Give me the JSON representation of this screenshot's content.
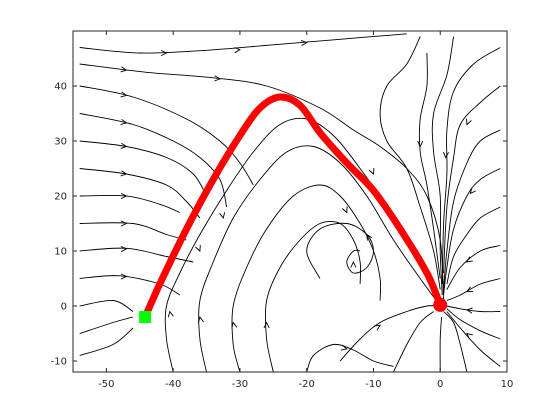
{
  "chart_data": {
    "type": "streamplot",
    "xlim": [
      -55,
      10
    ],
    "ylim": [
      -12,
      50
    ],
    "xticks": [
      -50,
      -40,
      -30,
      -20,
      -10,
      0,
      10
    ],
    "yticks": [
      -10,
      0,
      10,
      20,
      30,
      40
    ],
    "xtick_labels": [
      "-50",
      "-40",
      "-30",
      "-20",
      "-10",
      "0",
      "10"
    ],
    "ytick_labels": [
      "-10",
      "0",
      "10",
      "20",
      "30",
      "40"
    ],
    "grid": false,
    "colors": {
      "streamlines": "#000000",
      "trajectory": "#ff0000",
      "start_marker": "#00ff00",
      "end_marker": "#ff0000",
      "axes": "#262626"
    },
    "streamlines": [
      [
        [
          -54,
          47
        ],
        [
          -45,
          46
        ],
        [
          -35,
          46.5
        ],
        [
          -25,
          47.5
        ],
        [
          -15,
          48.5
        ],
        [
          -5,
          49.5
        ]
      ],
      [
        [
          -54,
          44
        ],
        [
          -44,
          42.5
        ],
        [
          -34,
          41.5
        ],
        [
          -26,
          40
        ],
        [
          -18,
          36
        ],
        [
          -13,
          32
        ],
        [
          -9,
          29
        ],
        [
          -5,
          25
        ],
        [
          -2,
          20
        ],
        [
          0,
          12
        ],
        [
          0.5,
          1
        ]
      ],
      [
        [
          -54,
          40
        ],
        [
          -46,
          38
        ],
        [
          -38,
          34
        ],
        [
          -33,
          30
        ],
        [
          -30,
          26
        ],
        [
          -28,
          22
        ]
      ],
      [
        [
          -54,
          35
        ],
        [
          -46,
          33
        ],
        [
          -40,
          30
        ],
        [
          -36,
          27
        ],
        [
          -33,
          23
        ],
        [
          -32,
          18
        ]
      ],
      [
        [
          -54,
          30
        ],
        [
          -47,
          29
        ],
        [
          -41,
          27
        ],
        [
          -37,
          24
        ],
        [
          -35,
          20
        ]
      ],
      [
        [
          -54,
          25
        ],
        [
          -47,
          24
        ],
        [
          -41,
          22
        ],
        [
          -38,
          19
        ],
        [
          -36,
          16
        ]
      ],
      [
        [
          -54,
          20
        ],
        [
          -47,
          20
        ],
        [
          -42,
          18.5
        ],
        [
          -39,
          17
        ]
      ],
      [
        [
          -54,
          15
        ],
        [
          -46,
          15
        ],
        [
          -41,
          13
        ],
        [
          -38,
          12
        ]
      ],
      [
        [
          -54,
          10
        ],
        [
          -47,
          10.5
        ],
        [
          -41,
          9
        ],
        [
          -37,
          8
        ]
      ],
      [
        [
          -54,
          5
        ],
        [
          -48,
          5.5
        ],
        [
          -42,
          4
        ],
        [
          -39,
          2
        ]
      ],
      [
        [
          -54,
          0
        ],
        [
          -49,
          1
        ],
        [
          -46,
          -1
        ]
      ],
      [
        [
          -54,
          -5
        ],
        [
          -49,
          -3
        ],
        [
          -46,
          -2
        ]
      ],
      [
        [
          -54,
          -9
        ],
        [
          -49,
          -7
        ],
        [
          -46,
          -4
        ]
      ],
      [
        [
          -40,
          -12
        ],
        [
          -41,
          -6
        ],
        [
          -41,
          0
        ],
        [
          -39,
          6
        ],
        [
          -36,
          13
        ],
        [
          -32,
          21
        ],
        [
          -28,
          28
        ],
        [
          -24,
          33
        ],
        [
          -20,
          34
        ],
        [
          -16,
          31
        ],
        [
          -12,
          25
        ],
        [
          -8,
          18
        ],
        [
          -4,
          10
        ],
        [
          -1,
          4
        ],
        [
          0,
          0
        ]
      ],
      [
        [
          -35,
          -12
        ],
        [
          -36,
          -6
        ],
        [
          -36,
          1
        ],
        [
          -34,
          8
        ],
        [
          -31,
          16
        ],
        [
          -27,
          23
        ],
        [
          -23,
          28
        ],
        [
          -19,
          29
        ],
        [
          -15,
          26
        ],
        [
          -11,
          20
        ],
        [
          -7,
          12
        ],
        [
          -3,
          5
        ],
        [
          0,
          0
        ]
      ],
      [
        [
          -30,
          -12
        ],
        [
          -31,
          -7
        ],
        [
          -31,
          0
        ],
        [
          -29,
          7
        ],
        [
          -26,
          14
        ],
        [
          -22,
          20
        ],
        [
          -18,
          22
        ],
        [
          -15,
          20
        ],
        [
          -12,
          15
        ],
        [
          -10,
          10
        ],
        [
          -9,
          5
        ],
        [
          -9,
          1
        ]
      ],
      [
        [
          -25,
          -12
        ],
        [
          -26,
          -6
        ],
        [
          -26,
          1
        ],
        [
          -24,
          7
        ],
        [
          -21,
          12
        ],
        [
          -18,
          15
        ],
        [
          -15,
          15
        ],
        [
          -13,
          12
        ],
        [
          -12,
          8
        ],
        [
          -12,
          4
        ]
      ],
      [
        [
          -18,
          5
        ],
        [
          -20,
          10
        ],
        [
          -18,
          14
        ],
        [
          -14,
          15
        ],
        [
          -11,
          13
        ],
        [
          -10,
          10
        ],
        [
          -11,
          7
        ],
        [
          -13,
          6
        ],
        [
          -14,
          8
        ],
        [
          -13,
          10
        ],
        [
          -12,
          10
        ]
      ],
      [
        [
          -20,
          -12
        ],
        [
          -19,
          -9
        ],
        [
          -16,
          -7
        ],
        [
          -13,
          -8
        ],
        [
          -10,
          -10
        ],
        [
          -7,
          -11
        ]
      ],
      [
        [
          -15,
          -10
        ],
        [
          -12,
          -6
        ],
        [
          -9,
          -3
        ],
        [
          -5,
          -1
        ],
        [
          -2,
          0
        ],
        [
          0,
          0
        ]
      ],
      [
        [
          -3,
          49
        ],
        [
          -5,
          44
        ],
        [
          -8,
          40
        ],
        [
          -9,
          35
        ],
        [
          -8,
          30
        ],
        [
          -5,
          25
        ],
        [
          -3,
          18
        ],
        [
          -1,
          10
        ],
        [
          0,
          3
        ]
      ],
      [
        [
          -2,
          46
        ],
        [
          -2,
          40
        ],
        [
          -3,
          34
        ],
        [
          -3,
          28
        ],
        [
          -2,
          22
        ],
        [
          -1,
          14
        ],
        [
          0,
          5
        ]
      ],
      [
        [
          2,
          49
        ],
        [
          1,
          42
        ],
        [
          -1,
          35
        ],
        [
          -1,
          28
        ],
        [
          0,
          20
        ],
        [
          0,
          10
        ],
        [
          0.3,
          2
        ]
      ],
      [
        [
          9,
          47
        ],
        [
          5,
          44
        ],
        [
          2,
          39
        ],
        [
          1,
          32
        ],
        [
          1,
          24
        ],
        [
          0.5,
          15
        ],
        [
          0.3,
          4
        ]
      ],
      [
        [
          9,
          40
        ],
        [
          6,
          37
        ],
        [
          3,
          33
        ],
        [
          2,
          27
        ],
        [
          1,
          18
        ],
        [
          0.5,
          6
        ]
      ],
      [
        [
          9,
          32
        ],
        [
          6,
          30
        ],
        [
          4,
          26
        ],
        [
          2,
          19
        ],
        [
          1,
          10
        ],
        [
          0.5,
          3
        ]
      ],
      [
        [
          9,
          25
        ],
        [
          6,
          23
        ],
        [
          4,
          20
        ],
        [
          2,
          14
        ],
        [
          1,
          7
        ],
        [
          0.5,
          2
        ]
      ],
      [
        [
          9,
          18
        ],
        [
          6,
          16
        ],
        [
          4,
          13
        ],
        [
          2,
          9
        ],
        [
          1,
          4
        ]
      ],
      [
        [
          9,
          11
        ],
        [
          6,
          10
        ],
        [
          3,
          7
        ],
        [
          1,
          3
        ]
      ],
      [
        [
          9,
          5
        ],
        [
          6,
          4
        ],
        [
          3,
          2
        ],
        [
          1,
          1
        ]
      ],
      [
        [
          9,
          -1
        ],
        [
          6,
          -1
        ],
        [
          3,
          -0.5
        ],
        [
          1,
          0
        ]
      ],
      [
        [
          9,
          -6
        ],
        [
          6,
          -4.5
        ],
        [
          3,
          -2.5
        ],
        [
          1,
          -0.5
        ]
      ],
      [
        [
          9,
          -11
        ],
        [
          6,
          -8
        ],
        [
          3,
          -4
        ],
        [
          1,
          -1
        ]
      ],
      [
        [
          4,
          -12
        ],
        [
          3,
          -7
        ],
        [
          2,
          -3
        ],
        [
          0.5,
          -1
        ]
      ],
      [
        [
          0,
          -12
        ],
        [
          0,
          -6
        ],
        [
          0.2,
          -2
        ]
      ],
      [
        [
          -7,
          -12
        ],
        [
          -5,
          -7
        ],
        [
          -3,
          -3
        ],
        [
          -1,
          -1
        ]
      ]
    ],
    "arrows": [
      [
        [
          -44,
          46
        ],
        [
          -41,
          46
        ]
      ],
      [
        [
          -33,
          46.3
        ],
        [
          -30,
          46.6
        ]
      ],
      [
        [
          -23,
          47.6
        ],
        [
          -20,
          47.9
        ]
      ],
      [
        [
          -50,
          43.4
        ],
        [
          -47,
          42.9
        ]
      ],
      [
        [
          -36,
          41.6
        ],
        [
          -33,
          41.3
        ]
      ],
      [
        [
          -50,
          39
        ],
        [
          -47,
          38.3
        ]
      ],
      [
        [
          -50,
          34
        ],
        [
          -47,
          33.3
        ]
      ],
      [
        [
          -50,
          29.5
        ],
        [
          -47,
          29
        ]
      ],
      [
        [
          -50,
          24.5
        ],
        [
          -47,
          24
        ]
      ],
      [
        [
          -50,
          20
        ],
        [
          -47,
          20
        ]
      ],
      [
        [
          -50,
          15
        ],
        [
          -47,
          15
        ]
      ],
      [
        [
          -50,
          10.2
        ],
        [
          -47,
          10.4
        ]
      ],
      [
        [
          -50,
          5.2
        ],
        [
          -47,
          5.4
        ]
      ],
      [
        [
          -40,
          -4
        ],
        [
          -40.5,
          -1
        ]
      ],
      [
        [
          -35.5,
          -5
        ],
        [
          -36,
          -2
        ]
      ],
      [
        [
          -30.5,
          -6
        ],
        [
          -31,
          -3
        ]
      ],
      [
        [
          -26,
          -6
        ],
        [
          -26,
          -3
        ]
      ],
      [
        [
          -33,
          19
        ],
        [
          -32.5,
          16
        ]
      ],
      [
        [
          -37,
          13
        ],
        [
          -36,
          10
        ]
      ],
      [
        [
          -15,
          20
        ],
        [
          -14,
          17
        ]
      ],
      [
        [
          -11,
          27
        ],
        [
          -10,
          24
        ]
      ],
      [
        [
          -3,
          32
        ],
        [
          -3,
          29
        ]
      ],
      [
        [
          1,
          30
        ],
        [
          0.8,
          27
        ]
      ],
      [
        [
          5,
          36
        ],
        [
          4,
          33
        ]
      ],
      [
        [
          6,
          22.5
        ],
        [
          4.5,
          20.5
        ]
      ],
      [
        [
          6,
          9.8
        ],
        [
          4,
          8
        ]
      ],
      [
        [
          6,
          3.9
        ],
        [
          4,
          2.6
        ]
      ],
      [
        [
          6,
          -1
        ],
        [
          4,
          -0.7
        ]
      ],
      [
        [
          6,
          -7
        ],
        [
          4,
          -5
        ]
      ],
      [
        [
          -16,
          -7.2
        ],
        [
          -14,
          -7.8
        ]
      ],
      [
        [
          -11,
          -5
        ],
        [
          -9,
          -3.5
        ]
      ],
      [
        [
          -13,
          5
        ],
        [
          -13,
          8
        ]
      ],
      [
        [
          -10,
          11
        ],
        [
          -11,
          13
        ]
      ]
    ],
    "trajectory": {
      "points": [
        [
          -44.2,
          -2
        ],
        [
          -42,
          4
        ],
        [
          -38,
          14
        ],
        [
          -34,
          23
        ],
        [
          -30,
          31
        ],
        [
          -27,
          36
        ],
        [
          -24,
          38
        ],
        [
          -21,
          36.5
        ],
        [
          -18,
          31.5
        ],
        [
          -14,
          26
        ],
        [
          -10,
          21
        ],
        [
          -6,
          14
        ],
        [
          -2,
          6
        ],
        [
          0,
          0.2
        ]
      ],
      "start": [
        -44.2,
        -2
      ],
      "end": [
        0,
        0.2
      ]
    }
  }
}
